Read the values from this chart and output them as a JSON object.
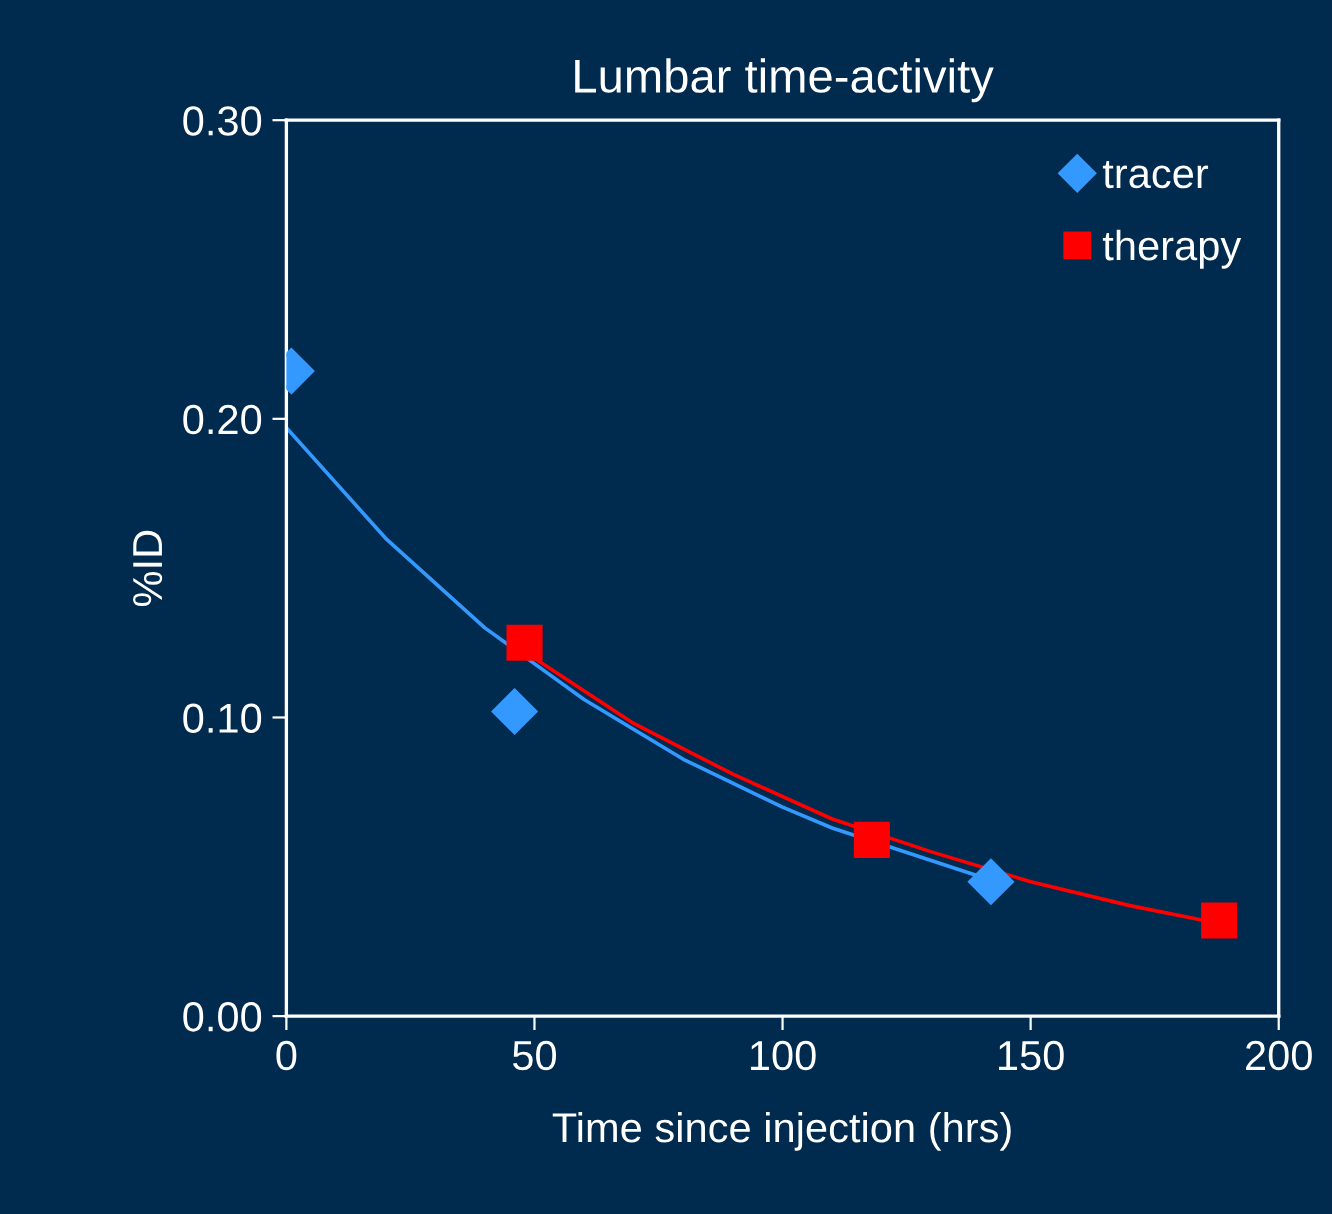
{
  "chart_data": {
    "type": "scatter",
    "title": "Lumbar time-activity",
    "xlabel": "Time since injection (hrs)",
    "ylabel": "%ID",
    "xlim": [
      0,
      200
    ],
    "xticks": [
      0,
      50,
      100,
      150,
      200
    ],
    "ylim": [
      0,
      0.3
    ],
    "yticks": [
      {
        "value": 0,
        "label": "0.00"
      },
      {
        "value": 0.1,
        "label": "0.10"
      },
      {
        "value": 0.2,
        "label": "0.20"
      },
      {
        "value": 0.3,
        "label": "0.30"
      }
    ],
    "grid": false,
    "legend": "top right",
    "series": [
      {
        "type": "line",
        "color": "#3399ff",
        "marker": "none",
        "x": [
          0,
          20,
          40,
          60,
          80,
          100,
          110,
          143
        ],
        "values": [
          0.197,
          0.16,
          0.13,
          0.106,
          0.086,
          0.07,
          0.063,
          0.045
        ]
      },
      {
        "type": "line",
        "color": "#ff0000",
        "marker": "none",
        "x": [
          48,
          70,
          90,
          110,
          130,
          150,
          170,
          188
        ],
        "values": [
          0.122,
          0.098,
          0.081,
          0.066,
          0.055,
          0.045,
          0.037,
          0.031
        ]
      },
      {
        "name": "tracer",
        "color": "#3399ff",
        "marker": "diamond",
        "x": [
          1,
          46,
          142
        ],
        "values": [
          0.216,
          0.102,
          0.045
        ]
      },
      {
        "name": "therapy",
        "color": "#ff0000",
        "marker": "square",
        "x": [
          48,
          118,
          188
        ],
        "values": [
          0.125,
          0.059,
          0.032
        ]
      }
    ]
  }
}
